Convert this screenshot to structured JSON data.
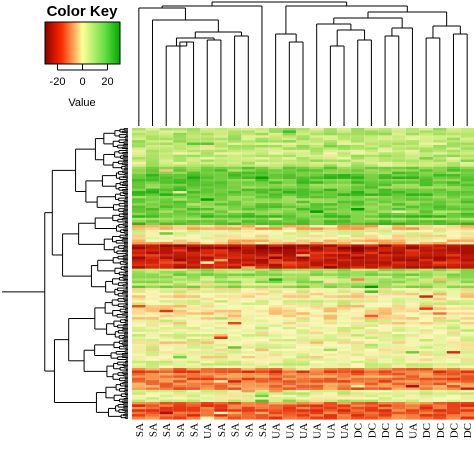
{
  "chart_data": {
    "type": "heatmap",
    "color_key": {
      "title": "Color Key",
      "xlabel": "Value",
      "ticks": [
        -20,
        0,
        20
      ],
      "tick_labels": [
        "-20",
        "0",
        "20"
      ],
      "range": [
        -30,
        30
      ],
      "colors": [
        "#8b0000",
        "#ff2a00",
        "#ffff99",
        "#33cc33",
        "#00aa00"
      ]
    },
    "column_labels": [
      "SA",
      "SA",
      "SA",
      "SA",
      "SA",
      "UA",
      "SA",
      "SA",
      "SA",
      "SA",
      "UA",
      "UA",
      "UA",
      "UA",
      "UA",
      "UA",
      "DC",
      "DC",
      "DC",
      "DC",
      "UA",
      "DC",
      "DC",
      "DC",
      "DC"
    ],
    "row_dendrogram": true,
    "column_dendrogram": true,
    "grid": false,
    "legend_position": "top-left"
  }
}
